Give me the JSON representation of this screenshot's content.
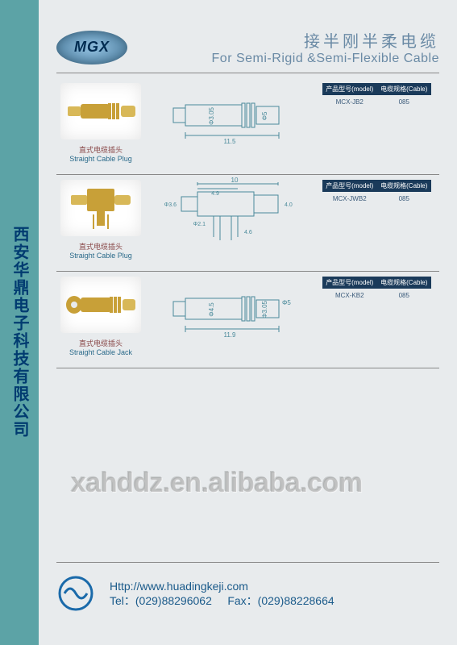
{
  "sidebar_text": "西安华鼎电子科技有限公司",
  "header": {
    "badge": "MGX",
    "title_cn": "接半刚半柔电缆",
    "title_en": "For Semi-Rigid &Semi-Flexible Cable"
  },
  "spec_header": {
    "col1": "产品型号(model)",
    "col2": "电缆规格(Cable)"
  },
  "rows": [
    {
      "cap_cn": "直式电缆插头",
      "cap_en": "Straight Cable Plug",
      "photo": {
        "type": "straight-plug",
        "body_color": "#c8a038",
        "tip_color": "#d8b858"
      },
      "diagram": {
        "type": "straight",
        "length": "11.5",
        "dia1": "Φ3.05",
        "dia2": "Φ5",
        "stroke": "#4a8a9a"
      },
      "model": "MCX-JB2",
      "cable": "085"
    },
    {
      "cap_cn": "直式电缆插头",
      "cap_en": "Straight Cable Plug",
      "photo": {
        "type": "right-angle",
        "body_color": "#c8a038",
        "tip_color": "#d8b858"
      },
      "diagram": {
        "type": "angle",
        "length": "10",
        "sub": "4.9",
        "h1": "Φ3.6",
        "h2": "4.0",
        "h3": "4.6",
        "h4": "Φ2.1",
        "stroke": "#4a8a9a"
      },
      "model": "MCX-JWB2",
      "cable": "085"
    },
    {
      "cap_cn": "直式电缆插头",
      "cap_en": "Straight Cable Jack",
      "photo": {
        "type": "straight-jack",
        "body_color": "#c8a038",
        "tip_color": "#d8b858"
      },
      "diagram": {
        "type": "straight",
        "length": "11.9",
        "dia1": "Φ4.5",
        "dia2": "Φ3.05",
        "dia3": "Φ5",
        "stroke": "#4a8a9a"
      },
      "model": "MCX-KB2",
      "cable": "085"
    }
  ],
  "watermark": "xahddz.en.alibaba.com",
  "footer": {
    "url": "Http://www.huadingkeji.com",
    "tel": "Tel：(029)88296062",
    "fax": "Fax：(029)88228664",
    "logo_color": "#1a6aaa"
  }
}
